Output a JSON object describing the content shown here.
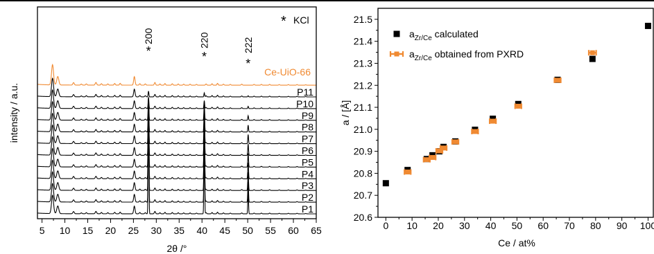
{
  "chart_data": [
    {
      "type": "line",
      "panel": "left",
      "xlabel": "2θ /°",
      "ylabel": "intensity / a.u.",
      "xlim": [
        4,
        65
      ],
      "x_ticks": [
        5,
        10,
        15,
        20,
        25,
        30,
        35,
        40,
        45,
        50,
        55,
        60,
        65
      ],
      "y_ticks_shown": false,
      "legend": {
        "marker": "*",
        "label": "KCl",
        "placement": "top-right"
      },
      "reflections": [
        {
          "label": "200",
          "x": 28.3
        },
        {
          "label": "220",
          "x": 40.5
        },
        {
          "label": "222",
          "x": 50.1
        }
      ],
      "series": [
        {
          "name": "P1",
          "color": "#000000",
          "kcl": 1.0
        },
        {
          "name": "P2",
          "color": "#000000",
          "kcl": 0.9
        },
        {
          "name": "P3",
          "color": "#000000",
          "kcl": 0.8
        },
        {
          "name": "P4",
          "color": "#000000",
          "kcl": 0.7
        },
        {
          "name": "P5",
          "color": "#000000",
          "kcl": 0.6
        },
        {
          "name": "P6",
          "color": "#000000",
          "kcl": 0.5
        },
        {
          "name": "P7",
          "color": "#000000",
          "kcl": 0.4
        },
        {
          "name": "P8",
          "color": "#000000",
          "kcl": 0.3
        },
        {
          "name": "P9",
          "color": "#000000",
          "kcl": 0.2
        },
        {
          "name": "P10",
          "color": "#000000",
          "kcl": 0.1
        },
        {
          "name": "P11",
          "color": "#000000",
          "kcl": 0.05
        },
        {
          "name": "Ce-UiO-66",
          "color": "#f08a32",
          "kcl": 0.0
        }
      ],
      "peaks": [
        {
          "x": 7.3,
          "h": 1.0,
          "w": 0.22
        },
        {
          "x": 8.45,
          "h": 0.42,
          "w": 0.22
        },
        {
          "x": 11.9,
          "h": 0.12,
          "w": 0.15
        },
        {
          "x": 13.6,
          "h": 0.05,
          "w": 0.13
        },
        {
          "x": 14.7,
          "h": 0.06,
          "w": 0.13
        },
        {
          "x": 16.8,
          "h": 0.13,
          "w": 0.15
        },
        {
          "x": 18.0,
          "h": 0.07,
          "w": 0.13
        },
        {
          "x": 19.4,
          "h": 0.06,
          "w": 0.13
        },
        {
          "x": 20.9,
          "h": 0.08,
          "w": 0.13
        },
        {
          "x": 22.1,
          "h": 0.09,
          "w": 0.13
        },
        {
          "x": 25.2,
          "h": 0.42,
          "w": 0.15
        },
        {
          "x": 26.4,
          "h": 0.07,
          "w": 0.13
        },
        {
          "x": 27.6,
          "h": 0.06,
          "w": 0.13
        },
        {
          "x": 29.7,
          "h": 0.13,
          "w": 0.13
        },
        {
          "x": 30.8,
          "h": 0.06,
          "w": 0.12
        },
        {
          "x": 31.9,
          "h": 0.08,
          "w": 0.12
        },
        {
          "x": 33.5,
          "h": 0.07,
          "w": 0.12
        },
        {
          "x": 34.8,
          "h": 0.06,
          "w": 0.12
        },
        {
          "x": 36.0,
          "h": 0.05,
          "w": 0.12
        },
        {
          "x": 37.4,
          "h": 0.05,
          "w": 0.12
        },
        {
          "x": 38.8,
          "h": 0.04,
          "w": 0.12
        },
        {
          "x": 40.9,
          "h": 0.06,
          "w": 0.12
        },
        {
          "x": 42.2,
          "h": 0.07,
          "w": 0.12
        },
        {
          "x": 43.4,
          "h": 0.09,
          "w": 0.12
        },
        {
          "x": 44.7,
          "h": 0.05,
          "w": 0.12
        },
        {
          "x": 46.2,
          "h": 0.04,
          "w": 0.12
        },
        {
          "x": 48.7,
          "h": 0.05,
          "w": 0.12
        },
        {
          "x": 51.4,
          "h": 0.04,
          "w": 0.12
        },
        {
          "x": 53.0,
          "h": 0.04,
          "w": 0.12
        },
        {
          "x": 54.8,
          "h": 0.04,
          "w": 0.12
        },
        {
          "x": 56.9,
          "h": 0.03,
          "w": 0.12
        },
        {
          "x": 58.9,
          "h": 0.03,
          "w": 0.12
        },
        {
          "x": 60.8,
          "h": 0.03,
          "w": 0.12
        },
        {
          "x": 62.7,
          "h": 0.02,
          "w": 0.12
        }
      ],
      "kcl_peaks": [
        {
          "x": 28.3,
          "h": 1.0
        },
        {
          "x": 40.5,
          "h": 0.7
        },
        {
          "x": 50.1,
          "h": 0.2
        }
      ]
    },
    {
      "type": "scatter",
      "panel": "right",
      "xlabel": "Ce / at%",
      "ylabel": "a / [Å]",
      "xlim": [
        -3,
        102
      ],
      "ylim": [
        20.6,
        21.55
      ],
      "x_ticks": [
        0,
        10,
        20,
        30,
        40,
        50,
        60,
        70,
        80,
        90,
        100
      ],
      "y_ticks": [
        "20.6",
        "20.7",
        "20.8",
        "20.9",
        "21.0",
        "21.1",
        "21.2",
        "21.3",
        "21.4",
        "21.5"
      ],
      "legend_placement": "top-left",
      "series": [
        {
          "name_main": "a",
          "name_sub": "Zr/Ce",
          "name_rest": " calculated",
          "marker": "square",
          "color": "#000000",
          "x": [
            0,
            8.3,
            15.6,
            17.8,
            20.4,
            22.0,
            26.5,
            34.0,
            40.8,
            50.5,
            65.5,
            78.8,
            100
          ],
          "y": [
            20.755,
            20.815,
            20.865,
            20.882,
            20.9,
            20.92,
            20.945,
            20.998,
            21.048,
            21.115,
            21.225,
            21.32,
            21.47
          ]
        },
        {
          "name_main": "a",
          "name_sub": "Zr/Ce",
          "name_rest": " obtained from PXRD",
          "marker": "errorbar",
          "color": "#f08a32",
          "x": [
            8.3,
            15.6,
            17.8,
            20.4,
            22.0,
            26.5,
            34.0,
            40.8,
            50.5,
            65.5,
            78.8
          ],
          "y": [
            20.806,
            20.862,
            20.872,
            20.902,
            20.915,
            20.943,
            20.99,
            21.037,
            21.105,
            21.223,
            21.348
          ],
          "xerr": [
            1.2,
            1.2,
            1.2,
            1.2,
            1.2,
            1.2,
            1.2,
            1.2,
            1.2,
            1.2,
            1.4
          ]
        }
      ]
    }
  ]
}
